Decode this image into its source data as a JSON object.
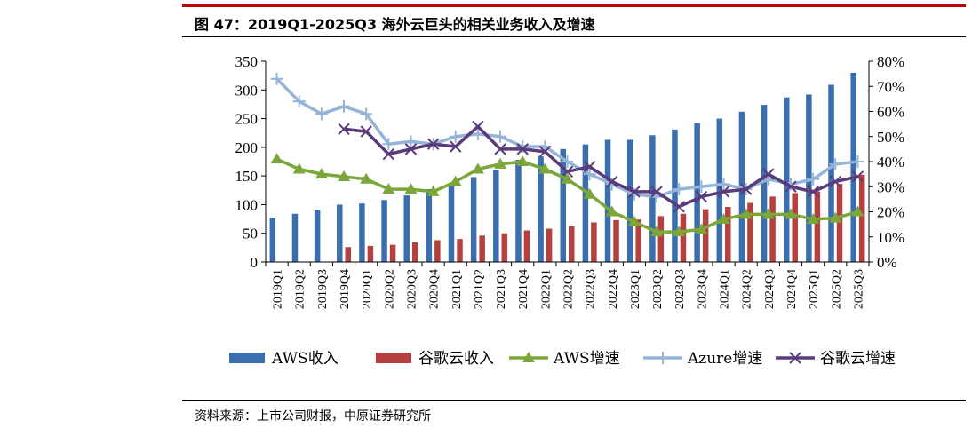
{
  "header": {
    "title": "图 47：2019Q1-2025Q3 海外云巨头的相关业务收入及增速"
  },
  "footer": {
    "source": "资料来源：上市公司财报，中原证券研究所"
  },
  "colors": {
    "top_rule": "#c00000",
    "aws_revenue": "#3a6eaf",
    "google_revenue": "#b64040",
    "aws_growth": "#7ba73a",
    "azure_growth": "#96b4d8",
    "google_growth": "#5a3b7c"
  },
  "chart_data": {
    "type": "bar",
    "categories": [
      "2019Q1",
      "2019Q2",
      "2019Q3",
      "2019Q4",
      "2020Q1",
      "2020Q2",
      "2020Q3",
      "2020Q4",
      "2021Q1",
      "2021Q2",
      "2021Q3",
      "2021Q4",
      "2022Q1",
      "2022Q2",
      "2022Q3",
      "2022Q4",
      "2023Q1",
      "2023Q2",
      "2023Q3",
      "2023Q4",
      "2024Q1",
      "2024Q2",
      "2024Q3",
      "2024Q4",
      "2025Q1",
      "2025Q2",
      "2025Q3"
    ],
    "left_axis": {
      "ylim": [
        0,
        350
      ],
      "ticks": [
        "0",
        "50",
        "100",
        "150",
        "200",
        "250",
        "300",
        "350"
      ]
    },
    "right_axis": {
      "ylim": [
        0,
        80
      ],
      "ticks": [
        "0%",
        "10%",
        "20%",
        "30%",
        "40%",
        "50%",
        "60%",
        "70%",
        "80%"
      ]
    },
    "series": [
      {
        "name": "AWS收入",
        "kind": "bar",
        "axis": "left",
        "values": [
          77,
          84,
          90,
          100,
          102,
          108,
          116,
          127,
          135,
          148,
          161,
          178,
          184,
          197,
          205,
          213,
          213,
          221,
          231,
          242,
          250,
          262,
          274,
          287,
          292,
          309,
          330
        ]
      },
      {
        "name": "谷歌云收入",
        "kind": "bar",
        "axis": "left",
        "values": [
          null,
          null,
          null,
          26,
          28,
          30,
          34,
          38,
          40,
          46,
          50,
          55,
          58,
          62,
          69,
          73,
          74,
          80,
          84,
          92,
          96,
          103,
          114,
          120,
          123,
          136,
          152
        ]
      },
      {
        "name": "AWS增速",
        "kind": "line",
        "marker": "triangle",
        "axis": "right",
        "values": [
          41,
          37,
          35,
          34,
          33,
          29,
          29,
          28,
          32,
          37,
          39,
          40,
          37,
          33,
          27,
          20,
          16,
          12,
          12,
          13,
          17,
          19,
          19,
          19,
          17,
          17.5,
          20
        ]
      },
      {
        "name": "Azure增速",
        "kind": "line",
        "marker": "plus",
        "axis": "right",
        "values": [
          73,
          64,
          59,
          62,
          59,
          47,
          48,
          47,
          50,
          51,
          50,
          46,
          46,
          40,
          35,
          31,
          27,
          26,
          29,
          30,
          31,
          29,
          33,
          31,
          33,
          39,
          40
        ]
      },
      {
        "name": "谷歌云增速",
        "kind": "line",
        "marker": "x",
        "axis": "right",
        "values": [
          null,
          null,
          null,
          53,
          52,
          43,
          45,
          47,
          46,
          54,
          45,
          45,
          44,
          36,
          38,
          32,
          28,
          28,
          22,
          26,
          28,
          29,
          35,
          30,
          28,
          32,
          34
        ]
      }
    ]
  }
}
